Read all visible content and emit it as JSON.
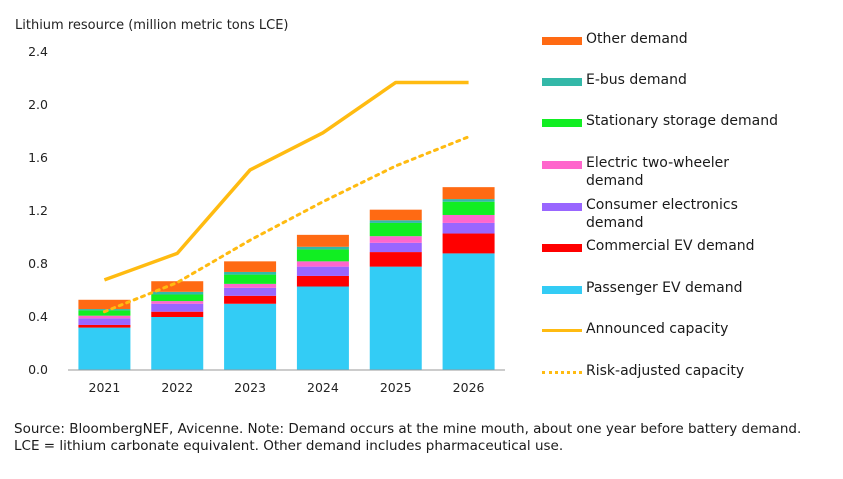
{
  "chart_data": {
    "type": "bar",
    "stacked": true,
    "title": "Lithium resource (million metric tons LCE)",
    "ylim": [
      0,
      2.4
    ],
    "yticks": [
      "0.0",
      "0.4",
      "0.8",
      "1.2",
      "1.6",
      "2.0",
      "2.4"
    ],
    "ytick_values": [
      0,
      0.4,
      0.8,
      1.2,
      1.6,
      2.0,
      2.4
    ],
    "categories": [
      "2021",
      "2022",
      "2023",
      "2024",
      "2025",
      "2026"
    ],
    "series": [
      {
        "name": "Passenger EV demand",
        "color": "#33ccf5",
        "values": [
          0.32,
          0.4,
          0.5,
          0.63,
          0.78,
          0.88
        ]
      },
      {
        "name": "Commercial EV demand",
        "color": "#ff0000",
        "values": [
          0.02,
          0.04,
          0.06,
          0.08,
          0.11,
          0.15
        ]
      },
      {
        "name": "Consumer electronics demand",
        "color": "#9966ff",
        "values": [
          0.05,
          0.06,
          0.06,
          0.07,
          0.07,
          0.08
        ]
      },
      {
        "name": "Electric two-wheeler demand",
        "color": "#ff66cc",
        "values": [
          0.02,
          0.02,
          0.03,
          0.04,
          0.05,
          0.06
        ]
      },
      {
        "name": "Stationary storage demand",
        "color": "#11ee22",
        "values": [
          0.04,
          0.05,
          0.07,
          0.09,
          0.1,
          0.1
        ]
      },
      {
        "name": "E-bus demand",
        "color": "#33b8a8",
        "values": [
          0.01,
          0.02,
          0.02,
          0.02,
          0.02,
          0.02
        ]
      },
      {
        "name": "Other demand",
        "color": "#ff6a13",
        "values": [
          0.07,
          0.08,
          0.08,
          0.09,
          0.08,
          0.09
        ]
      }
    ],
    "lines": [
      {
        "name": "Announced capacity",
        "color": "#ffbb11",
        "style": "solid",
        "values": [
          0.68,
          0.88,
          1.51,
          1.79,
          2.17,
          2.17
        ]
      },
      {
        "name": "Risk-adjusted capacity",
        "color": "#ffbb11",
        "style": "dotted",
        "values": [
          0.44,
          0.66,
          0.98,
          1.27,
          1.54,
          1.76
        ]
      }
    ],
    "legend_position": "right"
  },
  "source_note": "Source: BloombergNEF, Avicenne. Note: Demand occurs at the mine mouth, about one year before battery demand. LCE = lithium carbonate equivalent. Other demand includes pharmaceutical use."
}
